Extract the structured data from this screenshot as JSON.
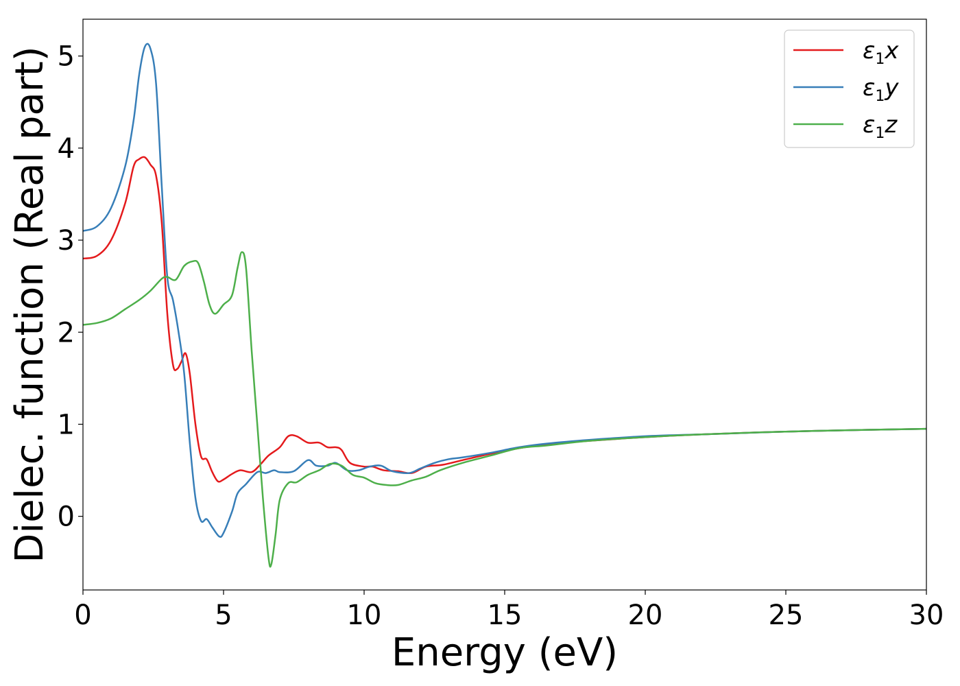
{
  "chart_data": {
    "type": "line",
    "title": "",
    "xlabel": "Energy (eV)",
    "ylabel": "Dielec. function (Real part)",
    "xlim": [
      0,
      30
    ],
    "ylim": [
      -0.8,
      5.4
    ],
    "xticks": [
      0,
      5,
      10,
      15,
      20,
      25,
      30
    ],
    "yticks": [
      0,
      1,
      2,
      3,
      4,
      5
    ],
    "grid": false,
    "legend_position": "top-right",
    "series": [
      {
        "name": "ε1x",
        "label_main": "ε",
        "label_sub": "1",
        "label_var": "x",
        "color": "#e41a1c",
        "points": [
          [
            0,
            2.8
          ],
          [
            0.5,
            2.83
          ],
          [
            1.0,
            3.0
          ],
          [
            1.5,
            3.4
          ],
          [
            1.8,
            3.8
          ],
          [
            2.0,
            3.88
          ],
          [
            2.2,
            3.9
          ],
          [
            2.4,
            3.82
          ],
          [
            2.6,
            3.7
          ],
          [
            2.8,
            3.2
          ],
          [
            3.0,
            2.2
          ],
          [
            3.2,
            1.65
          ],
          [
            3.35,
            1.6
          ],
          [
            3.5,
            1.68
          ],
          [
            3.65,
            1.77
          ],
          [
            3.8,
            1.55
          ],
          [
            4.0,
            1.0
          ],
          [
            4.2,
            0.65
          ],
          [
            4.4,
            0.62
          ],
          [
            4.6,
            0.48
          ],
          [
            4.8,
            0.38
          ],
          [
            5.0,
            0.4
          ],
          [
            5.3,
            0.46
          ],
          [
            5.6,
            0.5
          ],
          [
            6.0,
            0.48
          ],
          [
            6.3,
            0.56
          ],
          [
            6.6,
            0.66
          ],
          [
            7.0,
            0.75
          ],
          [
            7.3,
            0.87
          ],
          [
            7.6,
            0.87
          ],
          [
            8.0,
            0.8
          ],
          [
            8.4,
            0.8
          ],
          [
            8.7,
            0.75
          ],
          [
            9.0,
            0.75
          ],
          [
            9.2,
            0.72
          ],
          [
            9.5,
            0.58
          ],
          [
            10.0,
            0.54
          ],
          [
            10.3,
            0.54
          ],
          [
            10.7,
            0.5
          ],
          [
            11.2,
            0.49
          ],
          [
            11.7,
            0.47
          ],
          [
            12.2,
            0.54
          ],
          [
            12.8,
            0.56
          ],
          [
            13.5,
            0.61
          ],
          [
            14.5,
            0.68
          ],
          [
            15.5,
            0.74
          ],
          [
            16.5,
            0.78
          ],
          [
            18,
            0.82
          ],
          [
            20,
            0.86
          ],
          [
            22,
            0.89
          ],
          [
            25,
            0.92
          ],
          [
            28,
            0.94
          ],
          [
            30,
            0.95
          ]
        ]
      },
      {
        "name": "ε1y",
        "label_main": "ε",
        "label_sub": "1",
        "label_var": "y",
        "color": "#377eb8",
        "points": [
          [
            0,
            3.1
          ],
          [
            0.5,
            3.15
          ],
          [
            1.0,
            3.35
          ],
          [
            1.5,
            3.8
          ],
          [
            1.8,
            4.3
          ],
          [
            2.0,
            4.8
          ],
          [
            2.2,
            5.1
          ],
          [
            2.4,
            5.08
          ],
          [
            2.6,
            4.7
          ],
          [
            2.8,
            3.6
          ],
          [
            3.0,
            2.6
          ],
          [
            3.2,
            2.35
          ],
          [
            3.4,
            2.0
          ],
          [
            3.6,
            1.55
          ],
          [
            3.8,
            0.8
          ],
          [
            4.0,
            0.2
          ],
          [
            4.2,
            -0.05
          ],
          [
            4.4,
            -0.03
          ],
          [
            4.6,
            -0.12
          ],
          [
            4.85,
            -0.22
          ],
          [
            5.0,
            -0.18
          ],
          [
            5.3,
            0.05
          ],
          [
            5.5,
            0.25
          ],
          [
            5.8,
            0.35
          ],
          [
            6.2,
            0.48
          ],
          [
            6.5,
            0.47
          ],
          [
            6.8,
            0.5
          ],
          [
            7.0,
            0.48
          ],
          [
            7.5,
            0.49
          ],
          [
            8.0,
            0.61
          ],
          [
            8.3,
            0.55
          ],
          [
            8.7,
            0.55
          ],
          [
            9.0,
            0.58
          ],
          [
            9.4,
            0.5
          ],
          [
            9.8,
            0.5
          ],
          [
            10.2,
            0.54
          ],
          [
            10.6,
            0.55
          ],
          [
            11.0,
            0.49
          ],
          [
            11.6,
            0.47
          ],
          [
            12.0,
            0.52
          ],
          [
            12.5,
            0.58
          ],
          [
            13.0,
            0.62
          ],
          [
            13.5,
            0.64
          ],
          [
            14.5,
            0.69
          ],
          [
            15.5,
            0.75
          ],
          [
            16.5,
            0.79
          ],
          [
            18,
            0.83
          ],
          [
            20,
            0.87
          ],
          [
            22,
            0.89
          ],
          [
            25,
            0.92
          ],
          [
            28,
            0.94
          ],
          [
            30,
            0.95
          ]
        ]
      },
      {
        "name": "ε1z",
        "label_main": "ε",
        "label_sub": "1",
        "label_var": "z",
        "color": "#4daf4a",
        "points": [
          [
            0,
            2.08
          ],
          [
            0.5,
            2.1
          ],
          [
            1.0,
            2.15
          ],
          [
            1.5,
            2.25
          ],
          [
            2.0,
            2.35
          ],
          [
            2.4,
            2.45
          ],
          [
            2.8,
            2.58
          ],
          [
            3.0,
            2.6
          ],
          [
            3.3,
            2.57
          ],
          [
            3.6,
            2.72
          ],
          [
            3.9,
            2.77
          ],
          [
            4.1,
            2.75
          ],
          [
            4.3,
            2.55
          ],
          [
            4.5,
            2.3
          ],
          [
            4.7,
            2.2
          ],
          [
            5.0,
            2.3
          ],
          [
            5.3,
            2.4
          ],
          [
            5.5,
            2.7
          ],
          [
            5.65,
            2.87
          ],
          [
            5.8,
            2.7
          ],
          [
            6.0,
            1.8
          ],
          [
            6.2,
            1.0
          ],
          [
            6.4,
            0.2
          ],
          [
            6.6,
            -0.45
          ],
          [
            6.7,
            -0.52
          ],
          [
            6.85,
            -0.2
          ],
          [
            7.0,
            0.18
          ],
          [
            7.3,
            0.36
          ],
          [
            7.6,
            0.37
          ],
          [
            8.0,
            0.45
          ],
          [
            8.4,
            0.5
          ],
          [
            8.8,
            0.57
          ],
          [
            9.2,
            0.55
          ],
          [
            9.6,
            0.45
          ],
          [
            10.0,
            0.42
          ],
          [
            10.4,
            0.36
          ],
          [
            10.8,
            0.34
          ],
          [
            11.2,
            0.34
          ],
          [
            11.7,
            0.39
          ],
          [
            12.2,
            0.43
          ],
          [
            12.7,
            0.5
          ],
          [
            13.5,
            0.58
          ],
          [
            14.5,
            0.66
          ],
          [
            15.5,
            0.74
          ],
          [
            16.5,
            0.77
          ],
          [
            18,
            0.82
          ],
          [
            20,
            0.86
          ],
          [
            22,
            0.89
          ],
          [
            25,
            0.92
          ],
          [
            28,
            0.94
          ],
          [
            30,
            0.95
          ]
        ]
      }
    ]
  }
}
